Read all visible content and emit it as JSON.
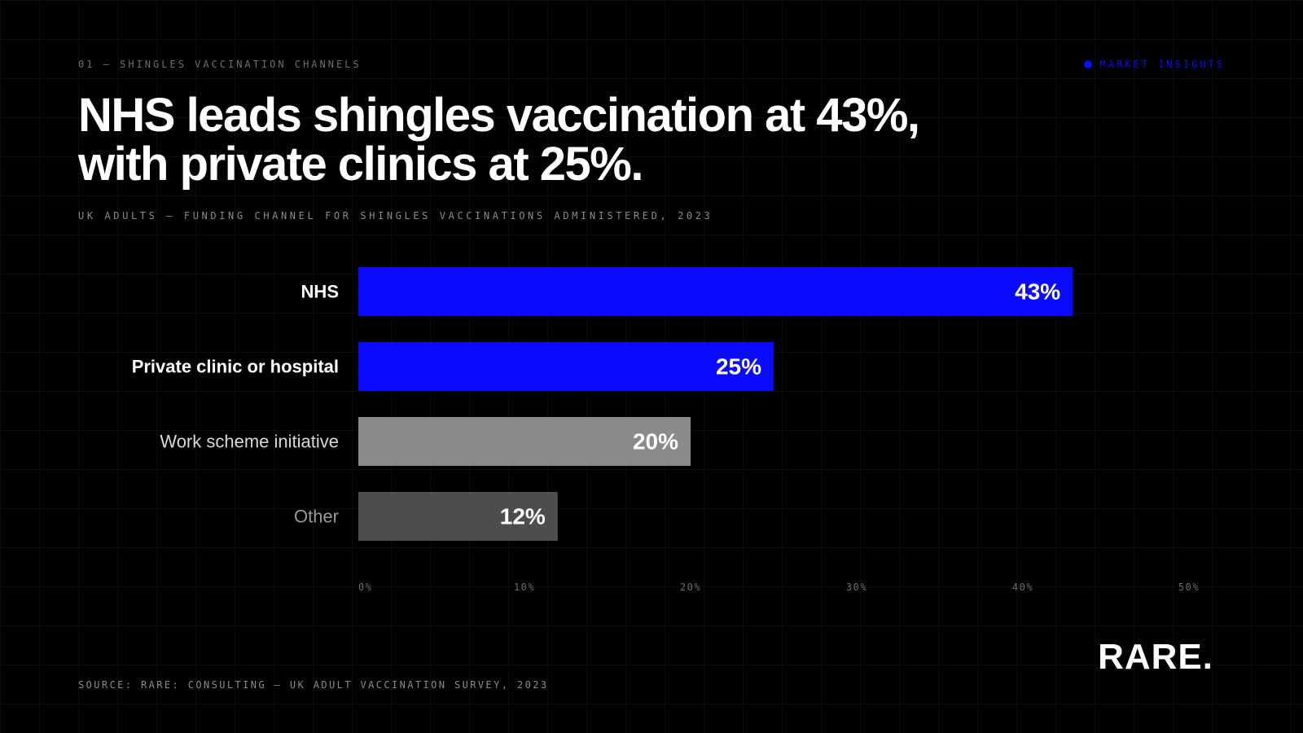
{
  "eyebrow": "01 — SHINGLES VACCINATION CHANNELS",
  "tag": {
    "label": "MARKET INSIGHTS",
    "color": "#0a0aff"
  },
  "headline": {
    "line1": "NHS leads shingles vaccination at 43%,",
    "line2": "with private clinics at 25%."
  },
  "subtitle": "UK ADULTS — FUNDING CHANNEL FOR SHINGLES VACCINATIONS ADMINISTERED, 2023",
  "source": "SOURCE: RARE: CONSULTING — UK ADULT VACCINATION SURVEY, 2023",
  "logo": "RARE.",
  "colors": {
    "accent": "#0a0aff",
    "grey": "#8a8a8a",
    "dark_grey": "#4d4d4d"
  },
  "chart_data": {
    "type": "bar",
    "orientation": "horizontal",
    "categories": [
      "NHS",
      "Private clinic or hospital",
      "Work scheme initiative",
      "Other"
    ],
    "values": [
      43,
      25,
      20,
      12
    ],
    "value_labels": [
      "43%",
      "25%",
      "20%",
      "12%"
    ],
    "bar_colors": [
      "#0a0aff",
      "#0a0aff",
      "#8a8a8a",
      "#4d4d4d"
    ],
    "label_colors": [
      "#ffffff",
      "#ffffff",
      "#d8d8d8",
      "#9a9a9a"
    ],
    "label_bold": [
      true,
      true,
      false,
      false
    ],
    "xlim": [
      0,
      50
    ],
    "xticks": [
      0,
      10,
      20,
      30,
      40,
      50
    ],
    "xtick_labels": [
      "0%",
      "10%",
      "20%",
      "30%",
      "40%",
      "50%"
    ],
    "grid": true
  }
}
